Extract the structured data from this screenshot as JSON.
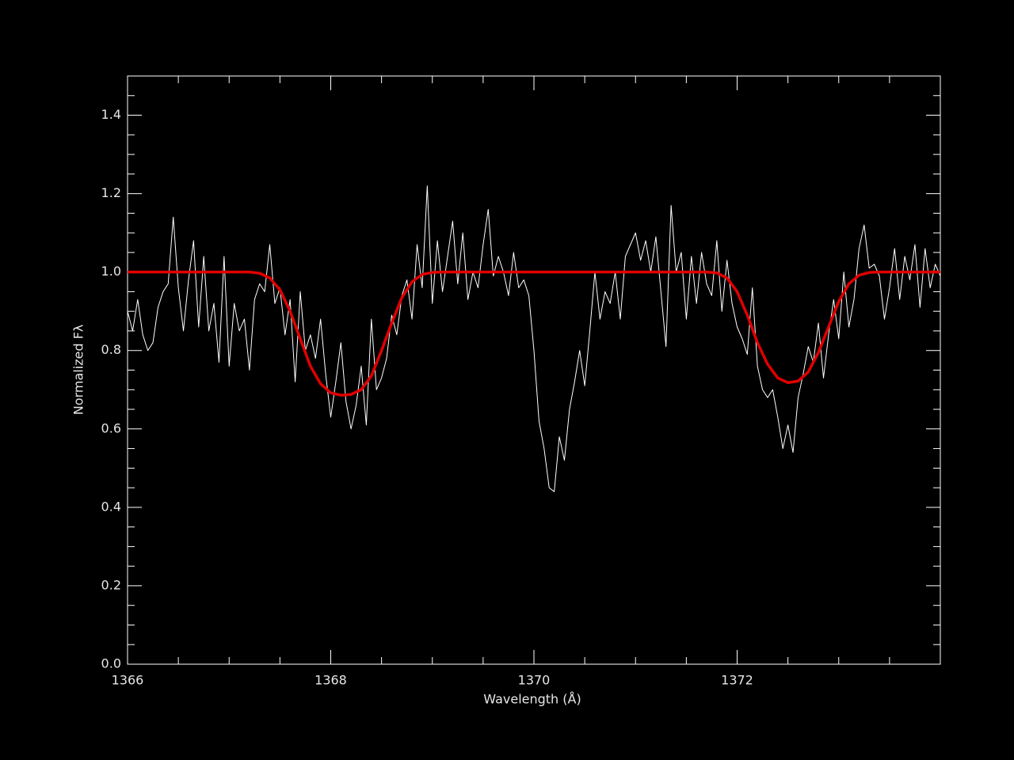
{
  "chart_data": {
    "type": "line",
    "xlabel": "Wavelength (Å)",
    "ylabel": "Normalized Fλ",
    "xlim": [
      1366,
      1374
    ],
    "ylim": [
      0,
      1.5
    ],
    "xticks": [
      1366,
      1368,
      1370,
      1372
    ],
    "xminorticks": [
      1366.5,
      1367,
      1367.5,
      1368.5,
      1369,
      1369.5,
      1370.5,
      1371,
      1371.5,
      1372.5,
      1373,
      1373.5
    ],
    "yticks": [
      {
        "value": 0,
        "label": "0.0"
      },
      0.2,
      0.4,
      0.6,
      0.8,
      {
        "value": 1,
        "label": "1.0"
      },
      1.2,
      1.4
    ],
    "yminorticks": [
      0.05,
      0.1,
      0.15,
      0.25,
      0.3,
      0.35,
      0.45,
      0.5,
      0.55,
      0.65,
      0.7,
      0.75,
      0.85,
      0.9,
      0.95,
      1.05,
      1.1,
      1.15,
      1.25,
      1.3,
      1.35,
      1.45
    ],
    "series": [
      {
        "color": "#ffffff",
        "width": 1,
        "x": [
          1366,
          1366.05,
          1366.1,
          1366.15,
          1366.2,
          1366.25,
          1366.3,
          1366.35,
          1366.4,
          1366.45,
          1366.5,
          1366.55,
          1366.6,
          1366.65,
          1366.7,
          1366.75,
          1366.8,
          1366.85,
          1366.9,
          1366.95,
          1367,
          1367.05,
          1367.1,
          1367.15,
          1367.2,
          1367.25,
          1367.3,
          1367.35,
          1367.4,
          1367.45,
          1367.5,
          1367.55,
          1367.6,
          1367.65,
          1367.7,
          1367.75,
          1367.8,
          1367.85,
          1367.9,
          1367.95,
          1368,
          1368.05,
          1368.1,
          1368.15,
          1368.2,
          1368.25,
          1368.3,
          1368.35,
          1368.4,
          1368.45,
          1368.5,
          1368.55,
          1368.6,
          1368.65,
          1368.7,
          1368.75,
          1368.8,
          1368.85,
          1368.9,
          1368.95,
          1369,
          1369.05,
          1369.1,
          1369.15,
          1369.2,
          1369.25,
          1369.3,
          1369.35,
          1369.4,
          1369.45,
          1369.5,
          1369.55,
          1369.6,
          1369.65,
          1369.7,
          1369.75,
          1369.8,
          1369.85,
          1369.9,
          1369.95,
          1370,
          1370.05,
          1370.1,
          1370.15,
          1370.2,
          1370.25,
          1370.3,
          1370.35,
          1370.4,
          1370.45,
          1370.5,
          1370.55,
          1370.6,
          1370.65,
          1370.7,
          1370.75,
          1370.8,
          1370.85,
          1370.9,
          1370.95,
          1371,
          1371.05,
          1371.1,
          1371.15,
          1371.2,
          1371.25,
          1371.3,
          1371.35,
          1371.4,
          1371.45,
          1371.5,
          1371.55,
          1371.6,
          1371.65,
          1371.7,
          1371.75,
          1371.8,
          1371.85,
          1371.9,
          1371.95,
          1372,
          1372.05,
          1372.1,
          1372.15,
          1372.2,
          1372.25,
          1372.3,
          1372.35,
          1372.4,
          1372.45,
          1372.5,
          1372.55,
          1372.6,
          1372.65,
          1372.7,
          1372.75,
          1372.8,
          1372.85,
          1372.9,
          1372.95,
          1373,
          1373.05,
          1373.1,
          1373.15,
          1373.2,
          1373.25,
          1373.3,
          1373.35,
          1373.4,
          1373.45,
          1373.5,
          1373.55,
          1373.6,
          1373.65,
          1373.7,
          1373.75,
          1373.8,
          1373.85,
          1373.9,
          1373.95,
          1374
        ],
        "values": [
          0.9,
          0.85,
          0.93,
          0.84,
          0.8,
          0.82,
          0.91,
          0.95,
          0.97,
          1.14,
          0.96,
          0.85,
          0.98,
          1.08,
          0.86,
          1.04,
          0.85,
          0.92,
          0.77,
          1.04,
          0.76,
          0.92,
          0.85,
          0.88,
          0.75,
          0.93,
          0.97,
          0.95,
          1.07,
          0.92,
          0.96,
          0.84,
          0.93,
          0.72,
          0.95,
          0.8,
          0.84,
          0.78,
          0.88,
          0.74,
          0.63,
          0.72,
          0.82,
          0.67,
          0.6,
          0.66,
          0.76,
          0.61,
          0.88,
          0.7,
          0.73,
          0.78,
          0.89,
          0.84,
          0.94,
          0.98,
          0.88,
          1.07,
          0.96,
          1.22,
          0.92,
          1.08,
          0.95,
          1.04,
          1.13,
          0.97,
          1.1,
          0.93,
          1.0,
          0.96,
          1.07,
          1.16,
          0.99,
          1.04,
          1.0,
          0.94,
          1.05,
          0.96,
          0.98,
          0.94,
          0.8,
          0.62,
          0.55,
          0.45,
          0.44,
          0.58,
          0.52,
          0.65,
          0.72,
          0.8,
          0.71,
          0.85,
          1.0,
          0.88,
          0.95,
          0.92,
          1.0,
          0.88,
          1.04,
          1.07,
          1.1,
          1.03,
          1.08,
          1.0,
          1.09,
          0.95,
          0.81,
          1.17,
          1.0,
          1.05,
          0.88,
          1.04,
          0.92,
          1.05,
          0.97,
          0.94,
          1.08,
          0.9,
          1.03,
          0.92,
          0.86,
          0.83,
          0.79,
          0.96,
          0.76,
          0.7,
          0.68,
          0.7,
          0.63,
          0.55,
          0.61,
          0.54,
          0.68,
          0.74,
          0.81,
          0.77,
          0.87,
          0.73,
          0.84,
          0.93,
          0.83,
          1.0,
          0.86,
          0.93,
          1.06,
          1.12,
          1.01,
          1.02,
          0.99,
          0.88,
          0.96,
          1.06,
          0.93,
          1.04,
          0.98,
          1.07,
          0.91,
          1.06,
          0.96,
          1.02,
          0.99
        ]
      },
      {
        "color": "#e00000",
        "width": 3.5,
        "x": [
          1366,
          1367.2,
          1367.3,
          1367.4,
          1367.5,
          1367.6,
          1367.7,
          1367.8,
          1367.9,
          1368,
          1368.1,
          1368.2,
          1368.3,
          1368.4,
          1368.5,
          1368.6,
          1368.7,
          1368.8,
          1368.9,
          1369,
          1369.1,
          1371.7,
          1371.8,
          1371.9,
          1372,
          1372.1,
          1372.2,
          1372.3,
          1372.4,
          1372.5,
          1372.6,
          1372.7,
          1372.8,
          1372.9,
          1373,
          1373.1,
          1373.2,
          1373.3,
          1373.4,
          1374
        ],
        "values": [
          1,
          1,
          0.997,
          0.985,
          0.955,
          0.9,
          0.83,
          0.76,
          0.715,
          0.692,
          0.686,
          0.688,
          0.7,
          0.735,
          0.8,
          0.87,
          0.935,
          0.975,
          0.994,
          0.999,
          1,
          1,
          0.998,
          0.985,
          0.95,
          0.89,
          0.82,
          0.765,
          0.73,
          0.718,
          0.722,
          0.745,
          0.795,
          0.86,
          0.925,
          0.97,
          0.992,
          0.999,
          1,
          1
        ]
      }
    ]
  }
}
